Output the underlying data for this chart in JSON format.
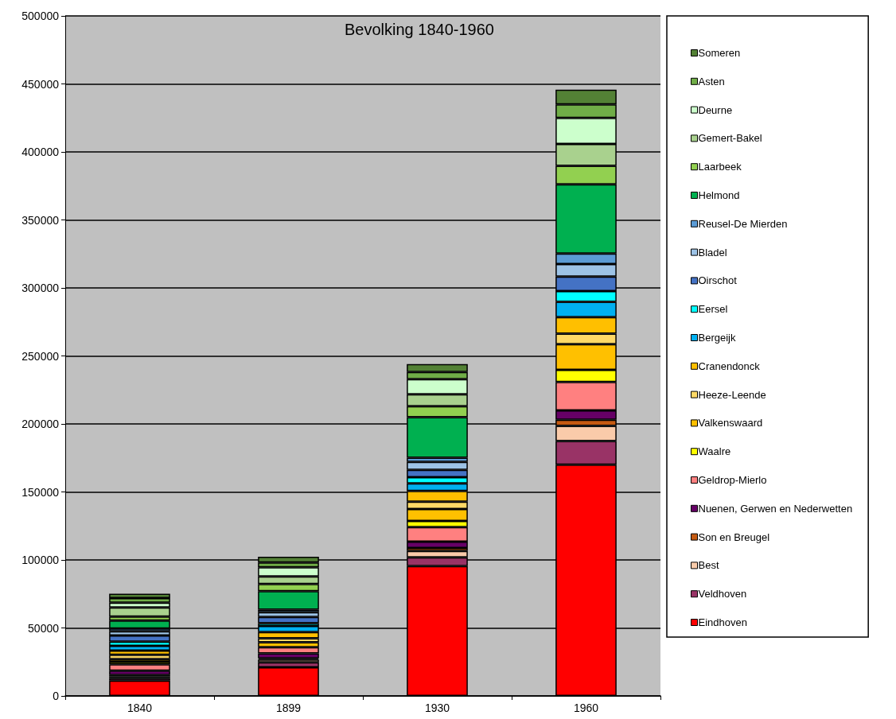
{
  "chart_data": {
    "type": "bar",
    "title": "Bevolking 1840-1960",
    "stacked": true,
    "grid": "y",
    "legend": "right",
    "categories": [
      "1840",
      "1899",
      "1930",
      "1960"
    ],
    "ylim": [
      0,
      500000
    ],
    "yticks": [
      0,
      50000,
      100000,
      150000,
      200000,
      250000,
      300000,
      350000,
      400000,
      450000,
      500000
    ],
    "series": [
      {
        "name": "Eindhoven",
        "color": "#ff0000",
        "values": [
          11300,
          21000,
          95500,
          170000
        ]
      },
      {
        "name": "Veldhoven",
        "color": "#993366",
        "values": [
          1800,
          3700,
          6400,
          17500
        ]
      },
      {
        "name": "Best",
        "color": "#facbaa",
        "values": [
          1200,
          2100,
          4700,
          11100
        ]
      },
      {
        "name": "Son en Breugel",
        "color": "#c55a11",
        "values": [
          1000,
          800,
          2100,
          4500
        ]
      },
      {
        "name": "Nuenen, Gerwen en Nederwetten",
        "color": "#660066",
        "values": [
          3300,
          3700,
          4700,
          6800
        ]
      },
      {
        "name": "Geldrop-Mierlo",
        "color": "#ff8080",
        "values": [
          4700,
          4500,
          10700,
          21000
        ]
      },
      {
        "name": "Waalre",
        "color": "#ffff00",
        "values": [
          1900,
          null,
          4500,
          8800
        ]
      },
      {
        "name": "Valkenswaard",
        "color": "#ffc000",
        "values": [
          1900,
          3700,
          8800,
          18900
        ]
      },
      {
        "name": "Heeze-Leende",
        "color": "#ffd966",
        "values": [
          3100,
          2900,
          5500,
          7800
        ]
      },
      {
        "name": "Cranendonck",
        "color": "#ffbf00",
        "values": [
          3100,
          4500,
          7800,
          12100
        ]
      },
      {
        "name": "Bergeijk",
        "color": "#00b0f0",
        "values": [
          3500,
          4500,
          5600,
          11300
        ]
      },
      {
        "name": "Eersel",
        "color": "#00ffff",
        "values": [
          3100,
          2100,
          4500,
          7800
        ]
      },
      {
        "name": "Oirschot",
        "color": "#4472c4",
        "values": [
          4500,
          4500,
          5500,
          10700
        ]
      },
      {
        "name": "Bladel",
        "color": "#9dc3e6",
        "values": [
          3100,
          3500,
          5800,
          9200
        ]
      },
      {
        "name": "Reusel-De Mierden",
        "color": "#5b9bd5",
        "values": [
          2100,
          1900,
          3100,
          7800
        ]
      },
      {
        "name": "Helmond",
        "color": "#00b050",
        "values": [
          5800,
          13600,
          29800,
          50900
        ]
      },
      {
        "name": "Laarbeek",
        "color": "#92d050",
        "values": [
          2900,
          5300,
          8000,
          13500
        ]
      },
      {
        "name": "Gemert-Bakel",
        "color": "#a9d18e",
        "values": [
          6800,
          5500,
          8800,
          16200
        ]
      },
      {
        "name": "Deurne",
        "color": "#ccffcc",
        "values": [
          3500,
          6800,
          11100,
          19100
        ]
      },
      {
        "name": "Asten",
        "color": "#70ad47",
        "values": [
          3300,
          3500,
          5300,
          9900
        ]
      },
      {
        "name": "Someren",
        "color": "#538135",
        "values": [
          3300,
          4300,
          5800,
          10900
        ]
      }
    ]
  }
}
